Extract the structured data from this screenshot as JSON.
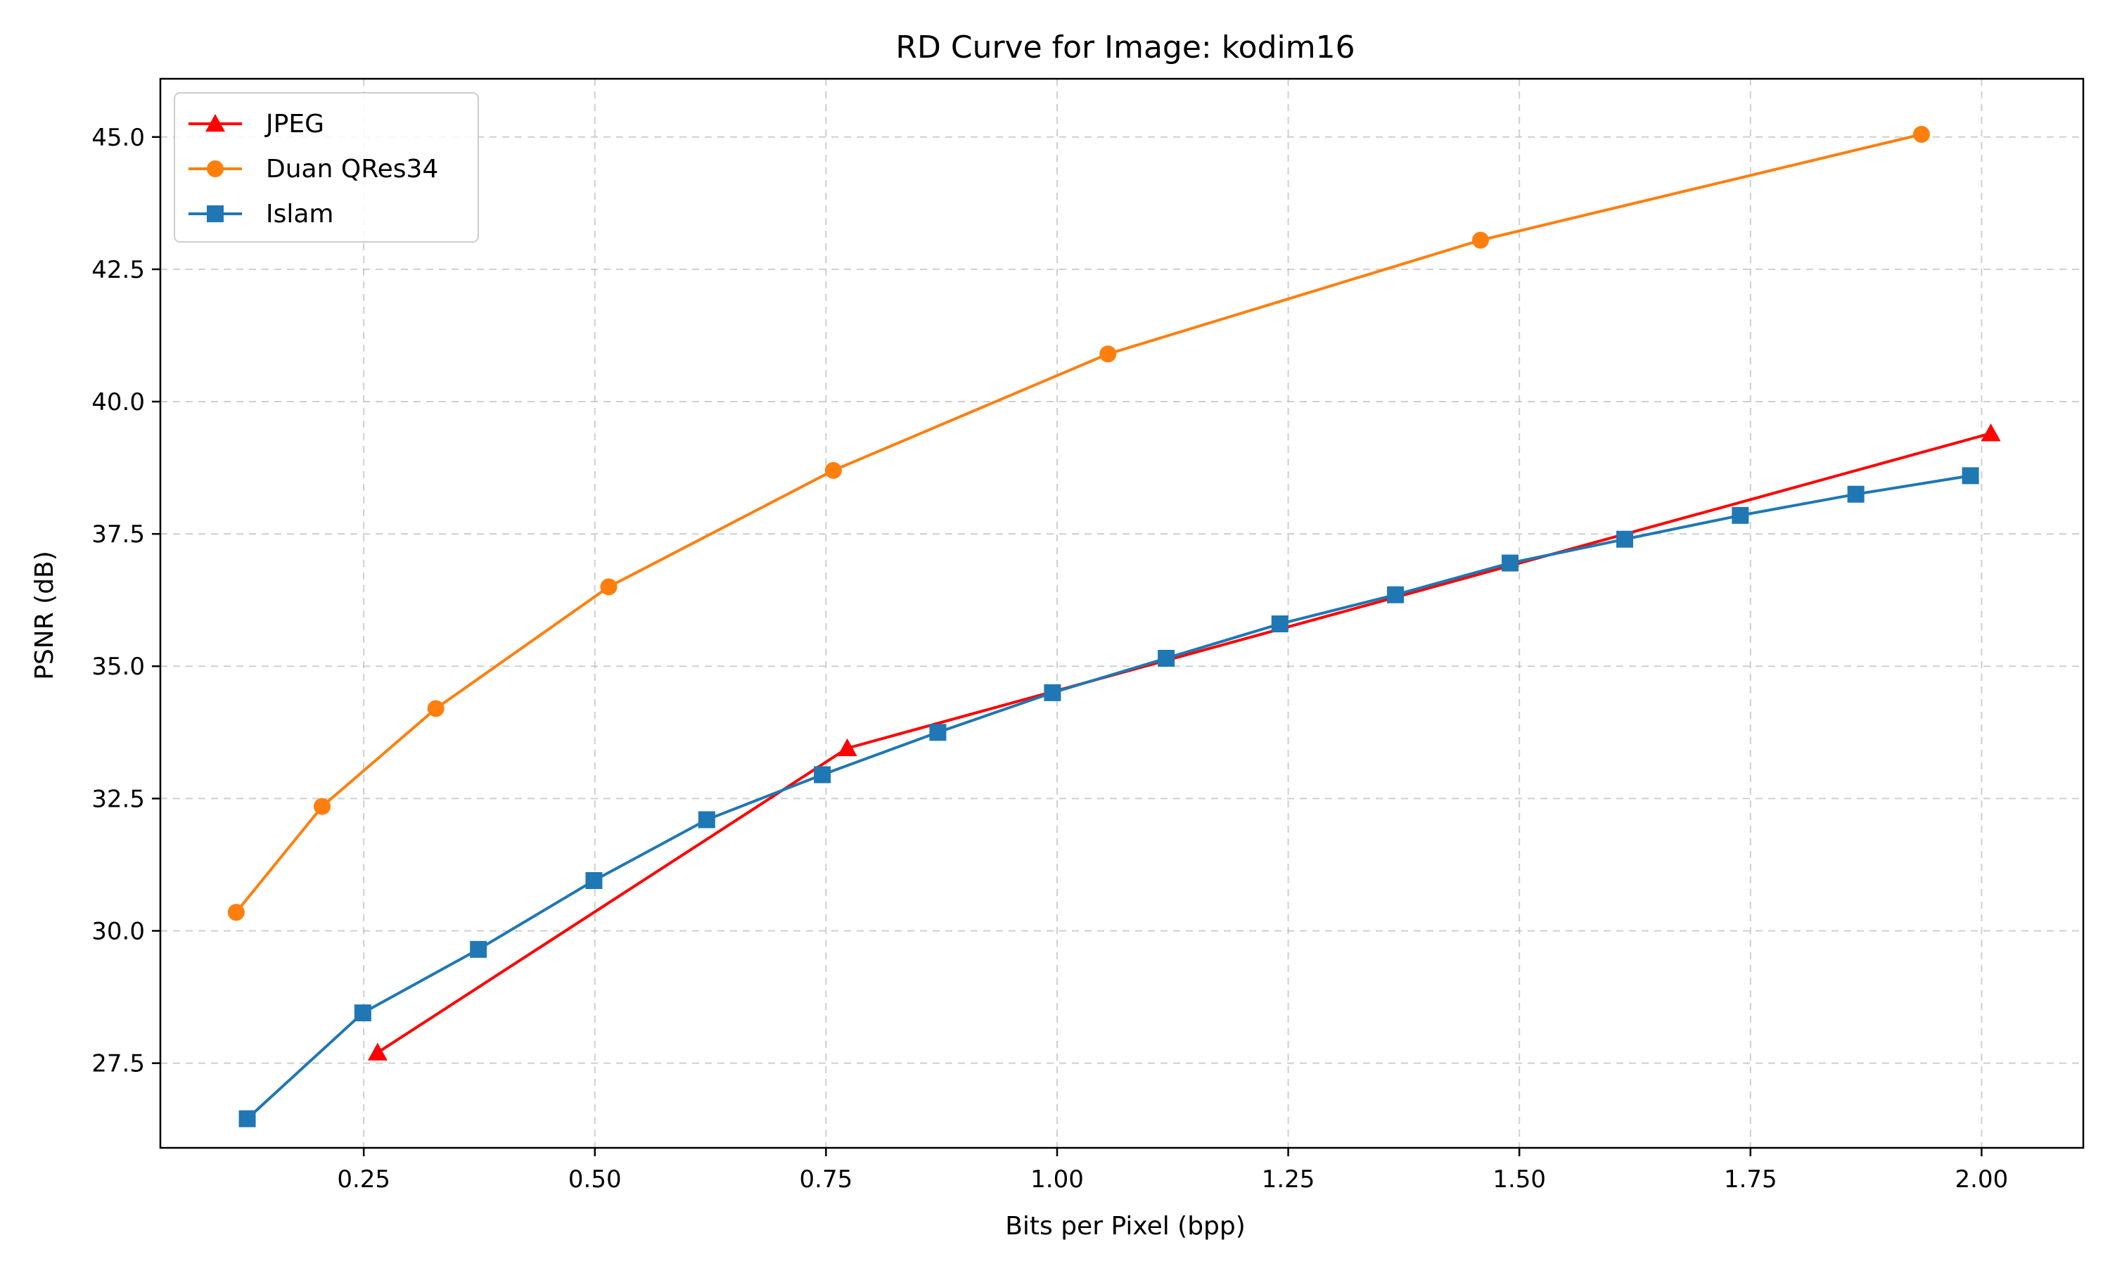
{
  "chart_data": {
    "type": "line",
    "title": "RD Curve for Image: kodim16",
    "xlabel": "Bits per Pixel (bpp)",
    "ylabel": "PSNR (dB)",
    "xlim": [
      0.03,
      2.11
    ],
    "ylim": [
      25.9,
      46.1
    ],
    "xticks": [
      0.25,
      0.5,
      0.75,
      1.0,
      1.25,
      1.5,
      1.75,
      2.0
    ],
    "xtick_labels": [
      "0.25",
      "0.50",
      "0.75",
      "1.00",
      "1.25",
      "1.50",
      "1.75",
      "2.00"
    ],
    "yticks": [
      27.5,
      30.0,
      32.5,
      35.0,
      37.5,
      40.0,
      42.5,
      45.0
    ],
    "ytick_labels": [
      "27.5",
      "30.0",
      "32.5",
      "35.0",
      "37.5",
      "40.0",
      "42.5",
      "45.0"
    ],
    "grid": true,
    "legend_position": "top-left",
    "series": [
      {
        "name": "JPEG",
        "color": "#ff0000",
        "marker": "triangle",
        "x": [
          0.265,
          0.773,
          2.01
        ],
        "y": [
          27.7,
          33.45,
          39.4
        ]
      },
      {
        "name": "Duan QRes34",
        "color": "#ff7f0e",
        "marker": "circle",
        "x": [
          0.112,
          0.205,
          0.328,
          0.515,
          0.758,
          1.055,
          1.458,
          1.935
        ],
        "y": [
          30.35,
          32.35,
          34.2,
          36.5,
          38.7,
          40.9,
          43.05,
          45.05
        ]
      },
      {
        "name": "Islam",
        "color": "#1f77b4",
        "marker": "square",
        "x": [
          0.124,
          0.249,
          0.374,
          0.499,
          0.621,
          0.746,
          0.871,
          0.995,
          1.118,
          1.241,
          1.366,
          1.49,
          1.614,
          1.739,
          1.864,
          1.988
        ],
        "y": [
          26.45,
          28.45,
          29.65,
          30.95,
          32.1,
          32.95,
          33.75,
          34.5,
          35.15,
          35.8,
          36.35,
          36.95,
          37.4,
          37.85,
          38.25,
          38.6
        ]
      }
    ]
  }
}
